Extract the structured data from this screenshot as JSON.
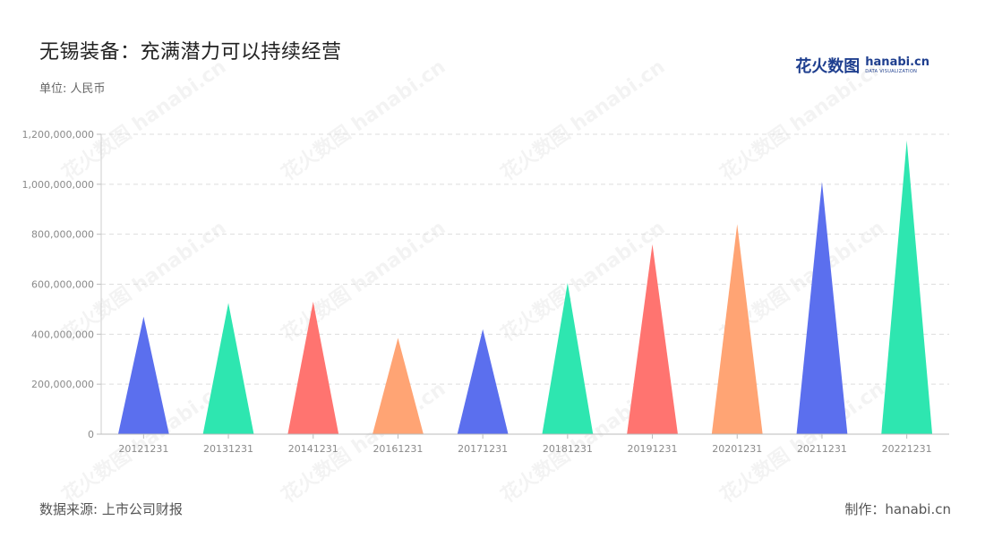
{
  "title": "无锡装备：充满潜力可以持续经营",
  "unit_label": "单位: 人民币",
  "logo": {
    "cn": "花火数图",
    "en": "hanabi.cn",
    "en_sub": "DATA VISUALIZATION"
  },
  "footer": {
    "source": "数据来源: 上市公司财报",
    "credit": "制作：hanabi.cn"
  },
  "watermark_text": "花火数图 hanabi.cn",
  "colors": [
    "#5b6fee",
    "#2ee6b0",
    "#ff7470",
    "#ffa474"
  ],
  "chart_data": {
    "type": "bar",
    "bar_shape": "triangle",
    "categories": [
      "20121231",
      "20131231",
      "20141231",
      "20161231",
      "20171231",
      "20181231",
      "20191231",
      "20201231",
      "20211231",
      "20221231"
    ],
    "values": [
      470000000,
      525000000,
      530000000,
      385000000,
      420000000,
      605000000,
      760000000,
      840000000,
      1010000000,
      1175000000
    ],
    "ylim": [
      0,
      1200000000
    ],
    "yticks": [
      0,
      200000000,
      400000000,
      600000000,
      800000000,
      1000000000,
      1200000000
    ],
    "ytick_labels": [
      "0",
      "200,000,000",
      "400,000,000",
      "600,000,000",
      "800,000,000",
      "1,000,000,000",
      "1,200,000,000"
    ],
    "grid": true,
    "xlabel": "",
    "ylabel": ""
  }
}
